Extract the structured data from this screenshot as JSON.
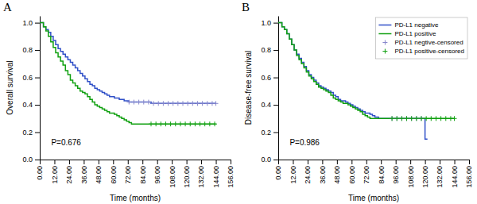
{
  "chart_data": [
    {
      "type": "line",
      "title": "A",
      "xlabel": "Time (months)",
      "ylabel": "Overall survival",
      "annotations": [
        "P=0.676"
      ],
      "grid": false,
      "xlim": [
        0,
        156
      ],
      "ylim": [
        0.0,
        1.05
      ],
      "xticks": [
        {
          "value": 0,
          "label": "0.00"
        },
        {
          "value": 12,
          "label": "12.00"
        },
        {
          "value": 24,
          "label": "24.00"
        },
        {
          "value": 36,
          "label": "36.00"
        },
        {
          "value": 48,
          "label": "48.00"
        },
        {
          "value": 60,
          "label": "60.00"
        },
        {
          "value": 72,
          "label": "72.00"
        },
        {
          "value": 84,
          "label": "84.00"
        },
        {
          "value": 96,
          "label": "96.00"
        },
        {
          "value": 108,
          "label": "108.00"
        },
        {
          "value": 120,
          "label": "120.00"
        },
        {
          "value": 132,
          "label": "132.00"
        },
        {
          "value": 144,
          "label": "144.00"
        },
        {
          "value": 156,
          "label": "156.00"
        }
      ],
      "yticks": [
        {
          "value": 0.0,
          "label": "0.0"
        },
        0.2,
        0.4,
        0.6,
        0.8,
        {
          "value": 1.0,
          "label": "1.0"
        }
      ],
      "series": [
        {
          "type": "step",
          "color": "#3050c8",
          "x": [
            0,
            3,
            5,
            7,
            9,
            11,
            13,
            15,
            17,
            19,
            21,
            23,
            25,
            27,
            29,
            31,
            33,
            35,
            37,
            39,
            41,
            43,
            45,
            47,
            49,
            51,
            53,
            55,
            57,
            59,
            61,
            63,
            65,
            67,
            69,
            71,
            73,
            75,
            77,
            79,
            81,
            85,
            91,
            97,
            109,
            121,
            144
          ],
          "values": [
            1.0,
            0.97,
            0.95,
            0.93,
            0.9,
            0.87,
            0.84,
            0.81,
            0.79,
            0.77,
            0.75,
            0.73,
            0.71,
            0.69,
            0.67,
            0.65,
            0.63,
            0.61,
            0.59,
            0.57,
            0.55,
            0.54,
            0.52,
            0.51,
            0.5,
            0.49,
            0.48,
            0.47,
            0.46,
            0.46,
            0.45,
            0.45,
            0.44,
            0.44,
            0.43,
            0.43,
            0.42,
            0.42,
            0.42,
            0.42,
            0.42,
            0.42,
            0.41,
            0.41,
            0.41,
            0.41,
            0.41
          ]
        },
        {
          "type": "step",
          "color": "#10a010",
          "x": [
            0,
            3,
            5,
            7,
            9,
            11,
            13,
            15,
            17,
            19,
            21,
            23,
            25,
            27,
            29,
            31,
            33,
            35,
            37,
            39,
            41,
            43,
            45,
            47,
            49,
            51,
            53,
            55,
            57,
            59,
            61,
            63,
            65,
            67,
            69,
            71,
            73,
            75,
            77,
            80,
            85,
            91,
            97,
            144
          ],
          "values": [
            1.0,
            0.97,
            0.94,
            0.9,
            0.86,
            0.82,
            0.78,
            0.75,
            0.72,
            0.69,
            0.65,
            0.62,
            0.58,
            0.56,
            0.54,
            0.52,
            0.5,
            0.49,
            0.48,
            0.46,
            0.44,
            0.42,
            0.4,
            0.39,
            0.38,
            0.37,
            0.36,
            0.35,
            0.34,
            0.34,
            0.33,
            0.32,
            0.31,
            0.3,
            0.29,
            0.28,
            0.27,
            0.26,
            0.26,
            0.26,
            0.26,
            0.26,
            0.26,
            0.26
          ]
        },
        {
          "type": "scatter",
          "marker": "plus",
          "color": "#8888cc",
          "x": [
            73,
            77,
            81,
            85,
            89,
            93,
            97,
            101,
            105,
            109,
            113,
            117,
            121,
            125,
            129,
            133,
            137,
            141,
            144
          ],
          "values": [
            0.42,
            0.42,
            0.42,
            0.42,
            0.42,
            0.41,
            0.41,
            0.41,
            0.41,
            0.41,
            0.41,
            0.41,
            0.41,
            0.41,
            0.41,
            0.41,
            0.41,
            0.41,
            0.41
          ]
        },
        {
          "type": "scatter",
          "marker": "plus",
          "color": "#10a010",
          "x": [
            91,
            95,
            99,
            103,
            107,
            111,
            115,
            119,
            123,
            127,
            131,
            135,
            139,
            143
          ],
          "values": [
            0.26,
            0.26,
            0.26,
            0.26,
            0.26,
            0.26,
            0.26,
            0.26,
            0.26,
            0.26,
            0.26,
            0.26,
            0.26,
            0.26
          ]
        }
      ]
    },
    {
      "type": "line",
      "title": "B",
      "xlabel": "Time (months)",
      "ylabel": "Disease-free survival",
      "annotations": [
        "P=0.986"
      ],
      "grid": false,
      "legend": "upper right",
      "xlim": [
        0,
        156
      ],
      "ylim": [
        0.0,
        1.05
      ],
      "xticks": [
        {
          "value": 0,
          "label": "0.00"
        },
        {
          "value": 12,
          "label": "12.00"
        },
        {
          "value": 24,
          "label": "24.00"
        },
        {
          "value": 36,
          "label": "36.00"
        },
        {
          "value": 48,
          "label": "48.00"
        },
        {
          "value": 60,
          "label": "60.00"
        },
        {
          "value": 72,
          "label": "72.00"
        },
        {
          "value": 84,
          "label": "84.00"
        },
        {
          "value": 96,
          "label": "96.00"
        },
        {
          "value": 108,
          "label": "108.00"
        },
        {
          "value": 120,
          "label": "120.00"
        },
        {
          "value": 132,
          "label": "132.00"
        },
        {
          "value": 144,
          "label": "144.00"
        },
        {
          "value": 156,
          "label": "156.00"
        }
      ],
      "yticks": [
        {
          "value": 0.0,
          "label": "0.0"
        },
        0.2,
        0.4,
        0.6,
        0.8,
        {
          "value": 1.0,
          "label": "1.0"
        }
      ],
      "series": [
        {
          "name": "PD-L1 negative",
          "type": "step",
          "color": "#3050c8",
          "x": [
            0,
            3,
            5,
            7,
            9,
            11,
            13,
            15,
            17,
            19,
            21,
            23,
            25,
            27,
            29,
            31,
            33,
            35,
            37,
            39,
            41,
            43,
            45,
            47,
            49,
            51,
            53,
            55,
            57,
            59,
            61,
            63,
            65,
            67,
            69,
            71,
            73,
            75,
            77,
            79,
            82,
            86,
            97,
            109,
            119,
            120,
            122
          ],
          "values": [
            1.0,
            0.97,
            0.95,
            0.92,
            0.88,
            0.84,
            0.8,
            0.77,
            0.74,
            0.71,
            0.68,
            0.65,
            0.62,
            0.6,
            0.58,
            0.56,
            0.54,
            0.53,
            0.52,
            0.51,
            0.5,
            0.49,
            0.47,
            0.46,
            0.44,
            0.43,
            0.43,
            0.42,
            0.41,
            0.4,
            0.39,
            0.38,
            0.37,
            0.36,
            0.35,
            0.34,
            0.34,
            0.33,
            0.32,
            0.31,
            0.3,
            0.3,
            0.3,
            0.3,
            0.3,
            0.15,
            0.15
          ]
        },
        {
          "name": "PD-L1 positive",
          "type": "step",
          "color": "#10a010",
          "x": [
            0,
            3,
            5,
            7,
            9,
            11,
            13,
            15,
            17,
            19,
            21,
            23,
            25,
            27,
            29,
            31,
            33,
            35,
            37,
            39,
            41,
            43,
            45,
            47,
            49,
            51,
            53,
            55,
            57,
            59,
            61,
            63,
            65,
            67,
            69,
            71,
            73,
            75,
            77,
            79,
            82,
            86,
            97,
            109,
            121,
            133,
            144
          ],
          "values": [
            1.0,
            0.97,
            0.95,
            0.92,
            0.88,
            0.84,
            0.8,
            0.76,
            0.73,
            0.7,
            0.67,
            0.64,
            0.61,
            0.59,
            0.57,
            0.55,
            0.53,
            0.52,
            0.51,
            0.5,
            0.49,
            0.47,
            0.45,
            0.44,
            0.43,
            0.42,
            0.41,
            0.41,
            0.4,
            0.39,
            0.38,
            0.37,
            0.36,
            0.35,
            0.33,
            0.32,
            0.31,
            0.3,
            0.3,
            0.3,
            0.3,
            0.3,
            0.3,
            0.3,
            0.3,
            0.3,
            0.3
          ]
        },
        {
          "name": "PD-L1 negtive-censored",
          "type": "scatter",
          "marker": "plus",
          "color": "#8888cc",
          "x": [
            93,
            97,
            101,
            105,
            109,
            113,
            117
          ],
          "values": [
            0.3,
            0.3,
            0.3,
            0.3,
            0.3,
            0.3,
            0.3
          ]
        },
        {
          "name": "PD-L1 positive-censored",
          "type": "scatter",
          "marker": "plus",
          "color": "#10a010",
          "x": [
            93,
            97,
            101,
            105,
            109,
            113,
            117,
            121,
            125,
            129,
            133,
            137,
            141,
            144
          ],
          "values": [
            0.3,
            0.3,
            0.3,
            0.3,
            0.3,
            0.3,
            0.3,
            0.3,
            0.3,
            0.3,
            0.3,
            0.3,
            0.3,
            0.3
          ]
        }
      ]
    }
  ]
}
